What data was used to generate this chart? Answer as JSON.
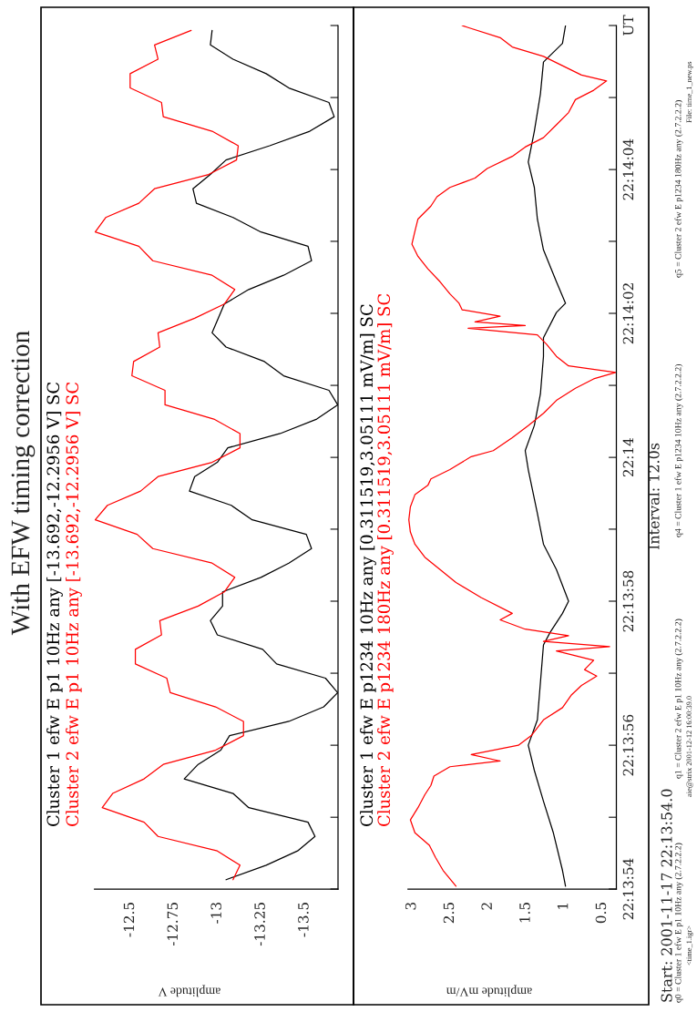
{
  "chart_data": [
    {
      "type": "line",
      "orientation": "horizontal",
      "title": "With EFW timing correction",
      "xlabel": "amplitude V",
      "xlim": [
        -12.2956,
        -13.692
      ],
      "xticks": [
        -12.5,
        -12.75,
        -13,
        -13.25,
        -13.5
      ],
      "ylim": [
        22.231667,
        22.235
      ],
      "yticks": [
        {
          "value": 22.231667,
          "label": null
        },
        {
          "value": 22.231944,
          "label": null
        },
        {
          "value": 22.232222,
          "label": null
        },
        {
          "value": 22.2325,
          "label": null
        },
        {
          "value": 22.232778,
          "label": null
        },
        {
          "value": 22.233056,
          "label": null
        },
        {
          "value": 22.233333,
          "label": null
        },
        {
          "value": 22.233611,
          "label": null
        },
        {
          "value": 22.233889,
          "label": null
        },
        {
          "value": 22.234167,
          "label": null
        },
        {
          "value": 22.234444,
          "label": null
        },
        {
          "value": 22.234722,
          "label": null
        },
        {
          "value": 22.235,
          "label": null
        }
      ],
      "tick_labels": "x",
      "series": [
        {
          "name": "Cluster 1 efw E p1 10Hz any [-13.692,-12.2956 V] SC",
          "color": "#000000",
          "x": [
            22.234981,
            22.234925,
            22.23487,
            22.234814,
            22.234759,
            22.234703,
            22.234648,
            22.234592,
            22.234536,
            22.234481,
            22.234425,
            22.23437,
            22.234314,
            22.234259,
            22.234203,
            22.234148,
            22.234092,
            22.234036,
            22.233981,
            22.233925,
            22.233814,
            22.233759,
            22.233703,
            22.233648,
            22.233592,
            22.233536,
            22.233481,
            22.233425,
            22.23337,
            22.233314,
            22.233259,
            22.233203,
            22.233148,
            22.233092,
            22.233036,
            22.232981,
            22.232925,
            22.23287,
            22.232814,
            22.232759,
            22.232703,
            22.232648,
            22.232592,
            22.232536,
            22.232481,
            22.232425,
            22.23237,
            22.232314,
            22.232259,
            22.232203,
            22.232148,
            22.232092,
            22.232036,
            22.231981,
            22.231925,
            22.23187,
            22.231814,
            22.231759,
            22.231703
          ],
          "values": [
            -12.97,
            -12.96,
            -13.09,
            -13.28,
            -13.41,
            -13.64,
            -13.67,
            -13.53,
            -13.3,
            -13.05,
            -12.96,
            -12.86,
            -12.88,
            -13.09,
            -13.25,
            -13.52,
            -13.54,
            -13.38,
            -13.18,
            -13.04,
            -12.97,
            -13.05,
            -13.27,
            -13.38,
            -13.64,
            -13.69,
            -13.57,
            -13.36,
            -13.06,
            -13.0,
            -12.87,
            -12.84,
            -13.08,
            -13.2,
            -13.51,
            -13.54,
            -13.41,
            -13.25,
            -13.03,
            -13.03,
            -12.96,
            -13.0,
            -13.26,
            -13.34,
            -13.62,
            -13.69,
            -13.61,
            -13.41,
            -13.07,
            -13.02,
            -12.89,
            -12.81,
            -13.09,
            -13.18,
            -13.52,
            -13.56,
            -13.46,
            -13.28,
            -13.05
          ]
        },
        {
          "name": "Cluster 2 efw E p1 10Hz any [-13.692,-12.2956 V] SC",
          "color": "#ff0000",
          "x": [
            22.234981,
            22.234925,
            22.23487,
            22.234814,
            22.234759,
            22.234703,
            22.234648,
            22.234592,
            22.234536,
            22.234481,
            22.234425,
            22.23437,
            22.234314,
            22.234259,
            22.234203,
            22.234148,
            22.234092,
            22.234036,
            22.233981,
            22.233925,
            22.23387,
            22.233814,
            22.233759,
            22.233703,
            22.233648,
            22.233592,
            22.233536,
            22.233481,
            22.233425,
            22.23337,
            22.233314,
            22.233259,
            22.233203,
            22.233148,
            22.233092,
            22.233036,
            22.232981,
            22.232925,
            22.23287,
            22.232814,
            22.232759,
            22.232703,
            22.232648,
            22.232592,
            22.232536,
            22.232481,
            22.232425,
            22.23237,
            22.232314,
            22.232259,
            22.232203,
            22.232148,
            22.232092,
            22.232036,
            22.231981,
            22.231925,
            22.23187,
            22.231814,
            22.231759,
            22.231703
          ],
          "values": [
            -12.85,
            -12.64,
            -12.66,
            -12.5,
            -12.5,
            -12.68,
            -12.69,
            -12.97,
            -13.12,
            -13.11,
            -12.95,
            -12.64,
            -12.55,
            -12.36,
            -12.3,
            -12.55,
            -12.63,
            -12.97,
            -13.1,
            -13.04,
            -12.87,
            -12.66,
            -12.67,
            -12.52,
            -12.51,
            -12.7,
            -12.7,
            -12.98,
            -13.13,
            -13.13,
            -12.97,
            -12.66,
            -12.56,
            -12.37,
            -12.3,
            -12.54,
            -12.63,
            -12.97,
            -13.1,
            -13.04,
            -12.89,
            -12.67,
            -12.68,
            -12.53,
            -12.53,
            -12.71,
            -12.73,
            -12.99,
            -13.15,
            -13.15,
            -12.99,
            -12.69,
            -12.58,
            -12.4,
            -12.34,
            -12.58,
            -12.66,
            -13.0,
            -13.13,
            -13.09
          ]
        }
      ]
    },
    {
      "type": "line",
      "orientation": "horizontal",
      "xlabel": "amplitude mV/m",
      "xlim": [
        3.05111,
        0.311519
      ],
      "xticks": [
        3,
        2.5,
        2,
        1.5,
        1,
        0.5
      ],
      "ylim": [
        22.231667,
        22.235
      ],
      "yticks": [
        {
          "value": 22.231667,
          "label": "22:13:54"
        },
        {
          "value": 22.231944,
          "label": null
        },
        {
          "value": 22.232222,
          "label": "22:13:56"
        },
        {
          "value": 22.2325,
          "label": null
        },
        {
          "value": 22.232778,
          "label": "22:13:58"
        },
        {
          "value": 22.233056,
          "label": null
        },
        {
          "value": 22.233333,
          "label": "22:14"
        },
        {
          "value": 22.233611,
          "label": null
        },
        {
          "value": 22.233889,
          "label": "22:14:02"
        },
        {
          "value": 22.234167,
          "label": null
        },
        {
          "value": 22.234444,
          "label": "22:14:04"
        },
        {
          "value": 22.234722,
          "label": null
        },
        {
          "value": 22.235,
          "label": "UT"
        }
      ],
      "annotations": [
        "Start: 2001-11-17 22:13:54.0",
        "Interval: 12.0s",
        "q0 = Cluster 1 efw E p1 10Hz any (2.7.2.2.2)",
        "q1 = Cluster 2 efw E p1 10Hz any (2.7.2.2.2)",
        "q4 = Cluster 1 efw E p1234 10Hz any (2.7.2.2.2)",
        "q5 = Cluster 2 efw E p1234 180Hz any (2.7.2.2.2)",
        "<time_1.igr>",
        "aie@strix 2001-12-12 16:00:39.0",
        "File: time_1_new.ps"
      ],
      "series": [
        {
          "name": "Cluster 1 efw E p1234 10Hz any [0.311519,3.05111 mV/m] SC",
          "color": "#000000",
          "x": [
            22.231678,
            22.231739,
            22.231884,
            22.232006,
            22.232125,
            22.232222,
            22.23232,
            22.232464,
            22.232609,
            22.232659,
            22.232731,
            22.232778,
            22.2329,
            22.232998,
            22.233117,
            22.233286,
            22.233359,
            22.233456,
            22.233578,
            22.233723,
            22.233795,
            22.233892,
            22.233928,
            22.234011,
            22.234134,
            22.234253,
            22.234375,
            22.234473,
            22.234592,
            22.234736,
            22.234859,
            22.234931,
            22.235
          ],
          "values": [
            0.98,
            1.02,
            1.14,
            1.27,
            1.39,
            1.47,
            1.35,
            1.31,
            1.27,
            1.18,
            1.02,
            0.94,
            1.1,
            1.27,
            1.35,
            1.47,
            1.51,
            1.39,
            1.31,
            1.27,
            1.27,
            1.1,
            0.98,
            1.1,
            1.27,
            1.35,
            1.39,
            1.47,
            1.39,
            1.31,
            1.27,
            1.02,
            0.98
          ]
        },
        {
          "name": "Cluster 2 efw E p1234 180Hz any [0.311519,3.05111 mV/m] SC",
          "color": "#ff0000",
          "x": [
            22.231678,
            22.231739,
            22.231789,
            22.231836,
            22.231884,
            22.231934,
            22.231981,
            22.232031,
            22.232067,
            22.232103,
            22.232139,
            22.232161,
            22.232186,
            22.232222,
            22.232259,
            22.23232,
            22.232367,
            22.232417,
            22.232453,
            22.232489,
            22.232514,
            22.23255,
            22.232586,
            22.232603,
            22.232623,
            22.232645,
            22.23267,
            22.232706,
            22.232731,
            22.232792,
            22.23285,
            22.2329,
            22.232948,
            22.232998,
            22.233045,
            22.233092,
            22.233142,
            22.233189,
            22.233225,
            22.23325,
            22.233286,
            22.233336,
            22.233359,
            22.233409,
            22.233456,
            22.233503,
            22.233553,
            22.2336,
            22.233636,
            22.233661,
            22.233686,
            22.233723,
            22.23377,
            22.233806,
            22.233831,
            22.233842,
            22.233856,
            22.233878,
            22.233903,
            22.233928,
            22.233964,
            22.234011,
            22.234061,
            22.234109,
            22.234156,
            22.234206,
            22.234253,
            22.234303,
            22.234339,
            22.234375,
            22.234411,
            22.234448,
            22.234495,
            22.234531,
            22.234567,
            22.234617,
            22.234664,
            22.234714,
            22.23475,
            22.234786,
            22.234809,
            22.234845,
            22.234881,
            22.234917,
            22.234953,
            22.234992,
            22.235
          ],
          "values": [
            2.42,
            2.59,
            2.69,
            2.77,
            2.96,
            3.02,
            2.92,
            2.83,
            2.75,
            2.71,
            2.5,
            1.84,
            2.22,
            1.6,
            1.43,
            1.27,
            1.02,
            0.9,
            0.77,
            0.57,
            0.73,
            0.61,
            1.1,
            0.4,
            1.27,
            0.94,
            1.51,
            1.84,
            1.68,
            2.09,
            2.42,
            2.63,
            2.83,
            2.96,
            3.02,
            3.04,
            3.02,
            2.96,
            2.79,
            2.75,
            2.5,
            2.22,
            1.93,
            1.68,
            1.47,
            1.27,
            1.1,
            0.85,
            0.61,
            0.32,
            0.94,
            1.1,
            1.23,
            1.35,
            2.26,
            1.51,
            2.17,
            1.84,
            2.34,
            2.38,
            2.5,
            2.63,
            2.79,
            2.92,
            3.0,
            2.96,
            2.92,
            2.75,
            2.67,
            2.5,
            2.17,
            2.01,
            1.68,
            1.51,
            1.27,
            1.1,
            0.94,
            0.85,
            0.61,
            0.44,
            0.77,
            1.02,
            1.27,
            1.68,
            1.84,
            2.26,
            2.34
          ]
        }
      ]
    }
  ]
}
